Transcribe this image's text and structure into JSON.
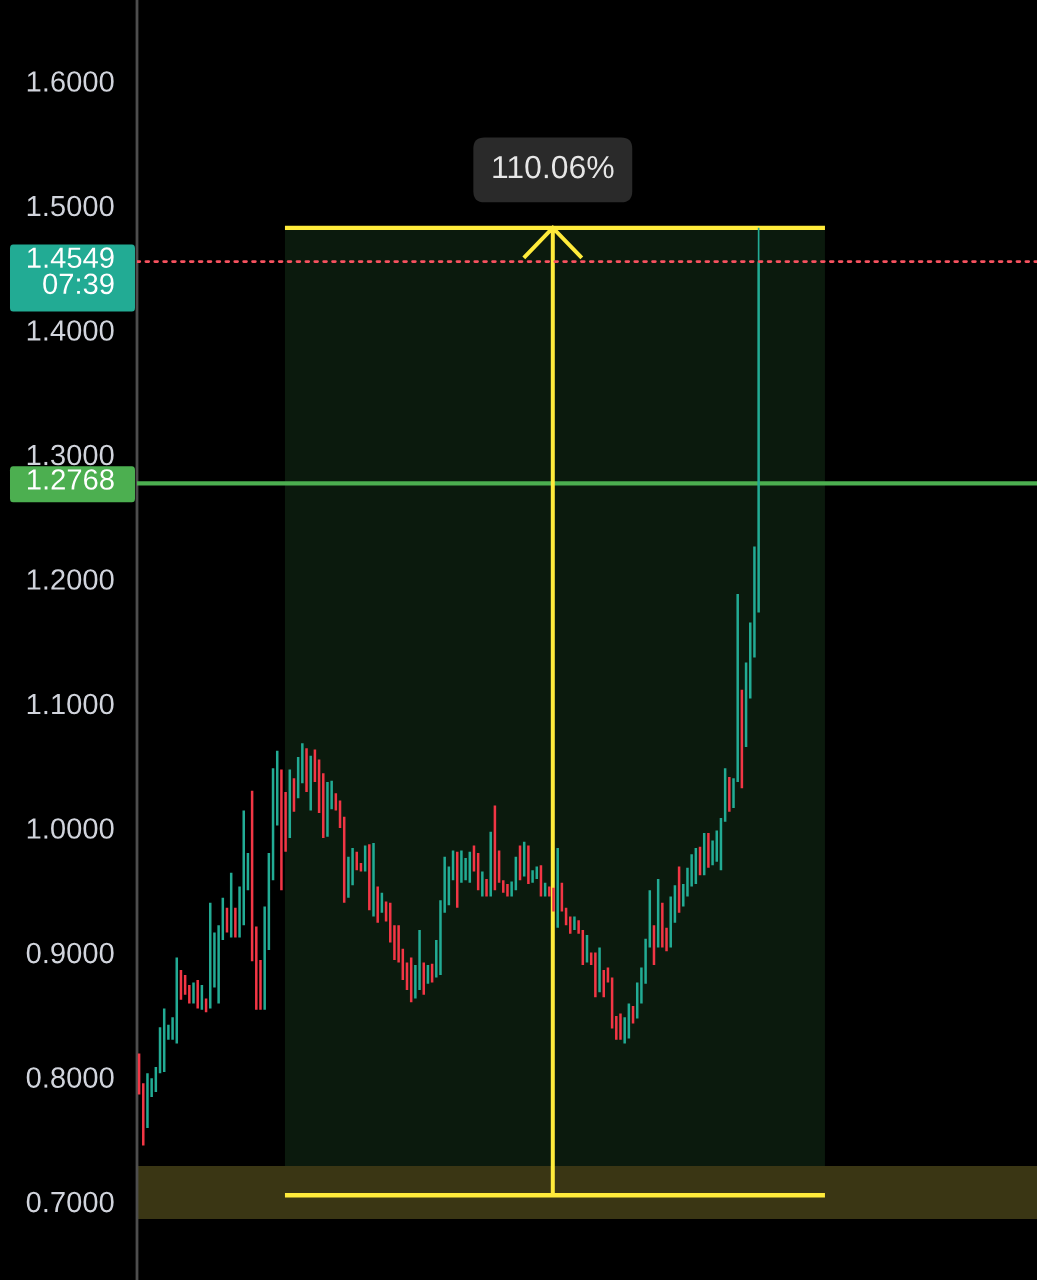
{
  "chart_data": {
    "type": "candlestick",
    "categories": [
      null,
      null,
      null,
      null,
      null,
      null,
      null,
      null,
      null,
      null,
      null,
      null,
      null,
      null,
      null,
      null,
      null,
      null,
      null,
      null,
      null,
      null,
      null,
      null,
      null,
      null,
      null,
      null,
      null,
      null,
      null,
      null,
      null,
      null,
      null,
      null,
      null,
      null,
      null,
      null,
      null,
      null,
      null,
      null,
      null,
      null,
      null,
      null,
      null,
      null,
      null,
      null,
      null,
      null,
      null,
      null,
      null,
      null,
      null,
      null,
      null,
      null,
      null,
      null,
      null,
      null,
      null,
      null,
      null,
      null,
      null,
      null,
      null,
      null,
      null,
      null,
      null,
      null,
      null,
      null,
      null,
      null,
      null,
      null,
      null,
      null,
      null,
      null,
      null,
      null,
      null,
      null,
      null,
      null,
      null,
      null,
      null,
      null,
      null,
      null,
      null,
      null,
      null,
      null,
      null,
      null,
      null,
      null,
      null,
      null,
      null,
      null,
      null,
      null,
      null,
      null,
      null,
      null,
      null,
      null,
      null,
      null,
      null,
      null,
      null,
      null,
      null,
      null,
      null,
      null,
      null,
      null,
      null,
      null,
      null,
      null,
      null,
      null,
      null,
      null,
      null,
      null,
      null,
      null,
      null,
      null,
      null,
      null,
      null,
      null,
      null,
      null,
      null,
      null,
      null,
      null,
      null,
      null,
      null,
      null,
      null,
      null,
      null,
      null,
      null,
      null,
      null,
      null,
      null,
      null,
      null,
      null,
      null,
      null,
      null,
      null,
      null,
      null,
      null,
      null,
      null,
      null,
      null,
      null,
      null,
      null,
      null,
      null,
      null,
      null,
      null,
      null,
      null,
      null,
      null,
      null,
      null,
      null,
      null,
      null,
      null,
      null,
      null,
      null,
      null,
      null,
      null,
      null,
      null,
      null,
      null,
      null,
      null,
      null,
      null
    ],
    "ohlc": [
      [
        0.819,
        0.819,
        0.786,
        0.786
      ],
      [
        0.795,
        0.795,
        0.745,
        0.745
      ],
      [
        0.759,
        0.803,
        0.759,
        0.803
      ],
      [
        0.784,
        0.799,
        0.784,
        0.799
      ],
      [
        0.788,
        0.808,
        0.788,
        0.808
      ],
      [
        0.803,
        0.84,
        0.803,
        0.84
      ],
      [
        0.804,
        0.855,
        0.804,
        0.855
      ],
      [
        0.83,
        0.842,
        0.83,
        0.842
      ],
      [
        0.83,
        0.848,
        0.83,
        0.848
      ],
      [
        0.827,
        0.896,
        0.827,
        0.896
      ],
      [
        0.886,
        0.886,
        0.862,
        0.862
      ],
      [
        0.882,
        0.882,
        0.866,
        0.866
      ],
      [
        0.874,
        0.874,
        0.859,
        0.859
      ],
      [
        0.859,
        0.876,
        0.859,
        0.876
      ],
      [
        0.878,
        0.878,
        0.855,
        0.855
      ],
      [
        0.854,
        0.874,
        0.854,
        0.874
      ],
      [
        0.863,
        0.863,
        0.852,
        0.852
      ],
      [
        0.855,
        0.94,
        0.855,
        0.94
      ],
      [
        0.872,
        0.916,
        0.872,
        0.916
      ],
      [
        0.859,
        0.922,
        0.859,
        0.922
      ],
      [
        0.91,
        0.944,
        0.91,
        0.944
      ],
      [
        0.936,
        0.936,
        0.916,
        0.916
      ],
      [
        0.912,
        0.964,
        0.912,
        0.964
      ],
      [
        0.936,
        0.936,
        0.912,
        0.912
      ],
      [
        0.912,
        0.953,
        0.912,
        0.953
      ],
      [
        0.922,
        1.014,
        0.922,
        1.014
      ],
      [
        0.95,
        0.98,
        0.95,
        0.98
      ],
      [
        1.03,
        1.03,
        0.893,
        0.893
      ],
      [
        0.921,
        0.921,
        0.854,
        0.854
      ],
      [
        0.894,
        0.894,
        0.854,
        0.854
      ],
      [
        0.854,
        0.937,
        0.854,
        0.937
      ],
      [
        0.902,
        0.98,
        0.902,
        0.98
      ],
      [
        0.958,
        1.048,
        0.958,
        1.048
      ],
      [
        1.002,
        1.062,
        1.002,
        1.062
      ],
      [
        1.047,
        1.047,
        0.95,
        0.95
      ],
      [
        1.029,
        1.029,
        0.981,
        0.981
      ],
      [
        0.992,
        1.047,
        0.992,
        1.047
      ],
      [
        1.04,
        1.04,
        1.013,
        1.013
      ],
      [
        1.024,
        1.057,
        1.024,
        1.057
      ],
      [
        1.036,
        1.068,
        1.036,
        1.068
      ],
      [
        1.064,
        1.064,
        1.029,
        1.029
      ],
      [
        1.014,
        1.058,
        1.014,
        1.058
      ],
      [
        1.063,
        1.063,
        1.037,
        1.037
      ],
      [
        1.055,
        1.055,
        1.012,
        1.012
      ],
      [
        1.044,
        1.044,
        0.992,
        0.992
      ],
      [
        0.993,
        1.037,
        0.993,
        1.037
      ],
      [
        1.015,
        1.038,
        1.015,
        1.038
      ],
      [
        1.028,
        1.028,
        1.014,
        1.014
      ],
      [
        1.022,
        1.022,
        1.0,
        1.0
      ],
      [
        1.009,
        1.009,
        0.94,
        0.94
      ],
      [
        0.944,
        0.977,
        0.944,
        0.977
      ],
      [
        0.954,
        0.984,
        0.954,
        0.984
      ],
      [
        0.981,
        0.981,
        0.966,
        0.966
      ],
      [
        0.972,
        0.972,
        0.965,
        0.965
      ],
      [
        0.965,
        0.986,
        0.965,
        0.986
      ],
      [
        0.987,
        0.987,
        0.934,
        0.934
      ],
      [
        0.929,
        0.988,
        0.929,
        0.988
      ],
      [
        0.953,
        0.953,
        0.924,
        0.924
      ],
      [
        0.932,
        0.948,
        0.932,
        0.948
      ],
      [
        0.941,
        0.941,
        0.925,
        0.925
      ],
      [
        0.94,
        0.94,
        0.908,
        0.908
      ],
      [
        0.922,
        0.922,
        0.894,
        0.894
      ],
      [
        0.922,
        0.922,
        0.892,
        0.892
      ],
      [
        0.903,
        0.903,
        0.878,
        0.878
      ],
      [
        0.892,
        0.892,
        0.87,
        0.87
      ],
      [
        0.896,
        0.896,
        0.86,
        0.86
      ],
      [
        0.863,
        0.89,
        0.863,
        0.89
      ],
      [
        0.87,
        0.918,
        0.87,
        0.918
      ],
      [
        0.892,
        0.892,
        0.866,
        0.866
      ],
      [
        0.875,
        0.89,
        0.875,
        0.89
      ],
      [
        0.891,
        0.891,
        0.876,
        0.876
      ],
      [
        0.88,
        0.91,
        0.88,
        0.91
      ],
      [
        0.882,
        0.942,
        0.882,
        0.942
      ],
      [
        0.932,
        0.977,
        0.932,
        0.977
      ],
      [
        0.938,
        0.969,
        0.938,
        0.969
      ],
      [
        0.958,
        0.982,
        0.958,
        0.982
      ],
      [
        0.981,
        0.981,
        0.936,
        0.936
      ],
      [
        0.956,
        0.982,
        0.956,
        0.982
      ],
      [
        0.958,
        0.976,
        0.958,
        0.976
      ],
      [
        0.956,
        0.981,
        0.956,
        0.981
      ],
      [
        0.986,
        0.986,
        0.965,
        0.965
      ],
      [
        0.98,
        0.98,
        0.95,
        0.95
      ],
      [
        0.945,
        0.965,
        0.945,
        0.965
      ],
      [
        0.959,
        0.959,
        0.945,
        0.945
      ],
      [
        0.945,
        0.997,
        0.945,
        0.997
      ],
      [
        1.018,
        1.018,
        0.95,
        0.95
      ],
      [
        0.982,
        0.982,
        0.956,
        0.956
      ],
      [
        0.958,
        0.958,
        0.948,
        0.948
      ],
      [
        0.955,
        0.955,
        0.945,
        0.945
      ],
      [
        0.945,
        0.957,
        0.945,
        0.957
      ],
      [
        0.95,
        0.977,
        0.95,
        0.977
      ],
      [
        0.986,
        0.986,
        0.958,
        0.958
      ],
      [
        0.961,
        0.989,
        0.961,
        0.989
      ],
      [
        0.986,
        0.986,
        0.955,
        0.955
      ],
      [
        0.956,
        0.966,
        0.956,
        0.966
      ],
      [
        0.959,
        0.969,
        0.959,
        0.969
      ],
      [
        0.97,
        0.97,
        0.945,
        0.945
      ],
      [
        0.945,
        0.956,
        0.945,
        0.956
      ],
      [
        0.953,
        0.953,
        0.945,
        0.945
      ],
      [
        0.952,
        0.952,
        0.933,
        0.933
      ],
      [
        0.92,
        0.984,
        0.92,
        0.984
      ],
      [
        0.956,
        0.956,
        0.933,
        0.933
      ],
      [
        0.936,
        0.936,
        0.922,
        0.922
      ],
      [
        0.929,
        0.929,
        0.915,
        0.915
      ],
      [
        0.918,
        0.929,
        0.918,
        0.929
      ],
      [
        0.926,
        0.926,
        0.915,
        0.915
      ],
      [
        0.918,
        0.918,
        0.89,
        0.89
      ],
      [
        0.892,
        0.914,
        0.892,
        0.914
      ],
      [
        0.9,
        0.9,
        0.89,
        0.89
      ],
      [
        0.9,
        0.9,
        0.864,
        0.864
      ],
      [
        0.868,
        0.904,
        0.868,
        0.904
      ],
      [
        0.886,
        0.886,
        0.864,
        0.864
      ],
      [
        0.888,
        0.888,
        0.876,
        0.876
      ],
      [
        0.88,
        0.88,
        0.839,
        0.839
      ],
      [
        0.849,
        0.849,
        0.83,
        0.83
      ],
      [
        0.851,
        0.851,
        0.83,
        0.83
      ],
      [
        0.827,
        0.848,
        0.827,
        0.848
      ],
      [
        0.831,
        0.859,
        0.831,
        0.859
      ],
      [
        0.857,
        0.857,
        0.843,
        0.843
      ],
      [
        0.847,
        0.876,
        0.847,
        0.876
      ],
      [
        0.859,
        0.888,
        0.859,
        0.888
      ],
      [
        0.875,
        0.911,
        0.875,
        0.911
      ],
      [
        0.904,
        0.95,
        0.904,
        0.95
      ],
      [
        0.922,
        0.922,
        0.89,
        0.89
      ],
      [
        0.904,
        0.959,
        0.904,
        0.959
      ],
      [
        0.94,
        0.94,
        0.904,
        0.904
      ],
      [
        0.92,
        0.92,
        0.901,
        0.901
      ],
      [
        0.904,
        0.945,
        0.904,
        0.945
      ],
      [
        0.924,
        0.954,
        0.924,
        0.954
      ],
      [
        0.969,
        0.969,
        0.932,
        0.932
      ],
      [
        0.937,
        0.955,
        0.937,
        0.955
      ],
      [
        0.945,
        0.968,
        0.945,
        0.968
      ],
      [
        0.953,
        0.979,
        0.953,
        0.979
      ],
      [
        0.955,
        0.984,
        0.955,
        0.984
      ],
      [
        0.985,
        0.985,
        0.962,
        0.962
      ],
      [
        0.962,
        0.996,
        0.962,
        0.996
      ],
      [
        0.996,
        0.996,
        0.968,
        0.968
      ],
      [
        0.97,
        0.99,
        0.97,
        0.99
      ],
      [
        0.973,
        0.998,
        0.973,
        0.998
      ],
      [
        0.966,
        1.008,
        0.966,
        1.008
      ],
      [
        1.005,
        1.048,
        1.005,
        1.048
      ],
      [
        1.041,
        1.041,
        1.013,
        1.013
      ],
      [
        1.016,
        1.04,
        1.016,
        1.04
      ],
      [
        1.037,
        1.188,
        1.037,
        1.188
      ],
      [
        1.111,
        1.111,
        1.032,
        1.032
      ],
      [
        1.065,
        1.133,
        1.065,
        1.133
      ],
      [
        1.104,
        1.165,
        1.104,
        1.165
      ],
      [
        1.137,
        1.226,
        1.137,
        1.226
      ],
      [
        1.173,
        1.482,
        1.173,
        1.4549
      ],
      null,
      null,
      null,
      null,
      null,
      null,
      null,
      null,
      null,
      null,
      null,
      null,
      null,
      null,
      null,
      null,
      null,
      null,
      null,
      null,
      null,
      null,
      null,
      null,
      null,
      null,
      null,
      null,
      null,
      null,
      null,
      null,
      null,
      null,
      null,
      null,
      null,
      null,
      null,
      null,
      null,
      null,
      null,
      null,
      null,
      null,
      null,
      null,
      null,
      null,
      null,
      null,
      null,
      null,
      null,
      null,
      null,
      null,
      null,
      null,
      null,
      null,
      null,
      null,
      null,
      null
    ],
    "colors": [
      "#f23645",
      "#f23645",
      "#22ab94",
      "#22ab94",
      "#22ab94",
      "#22ab94",
      "#22ab94",
      "#22ab94",
      "#22ab94",
      "#22ab94",
      "#f23645",
      "#f23645",
      "#f23645",
      "#22ab94",
      "#f23645",
      "#22ab94",
      "#f23645",
      "#22ab94",
      "#22ab94",
      "#22ab94",
      "#22ab94",
      "#f23645",
      "#22ab94",
      "#f23645",
      "#22ab94",
      "#22ab94",
      "#22ab94",
      "#f23645",
      "#f23645",
      "#f23645",
      "#22ab94",
      "#22ab94",
      "#22ab94",
      "#22ab94",
      "#f23645",
      "#f23645",
      "#22ab94",
      "#f23645",
      "#22ab94",
      "#22ab94",
      "#f23645",
      "#22ab94",
      "#f23645",
      "#f23645",
      "#f23645",
      "#22ab94",
      "#22ab94",
      "#f23645",
      "#f23645",
      "#f23645",
      "#22ab94",
      "#22ab94",
      "#f23645",
      "#f23645",
      "#22ab94",
      "#f23645",
      "#22ab94",
      "#f23645",
      "#22ab94",
      "#f23645",
      "#f23645",
      "#f23645",
      "#f23645",
      "#f23645",
      "#f23645",
      "#f23645",
      "#22ab94",
      "#22ab94",
      "#f23645",
      "#22ab94",
      "#f23645",
      "#22ab94",
      "#22ab94",
      "#22ab94",
      "#22ab94",
      "#22ab94",
      "#f23645",
      "#22ab94",
      "#22ab94",
      "#22ab94",
      "#f23645",
      "#f23645",
      "#22ab94",
      "#f23645",
      "#22ab94",
      "#f23645",
      "#f23645",
      "#f23645",
      "#f23645",
      "#22ab94",
      "#22ab94",
      "#f23645",
      "#22ab94",
      "#f23645",
      "#22ab94",
      "#22ab94",
      "#f23645",
      "#22ab94",
      "#f23645",
      "#f23645",
      "#22ab94",
      "#f23645",
      "#f23645",
      "#f23645",
      "#22ab94",
      "#f23645",
      "#f23645",
      "#22ab94",
      "#f23645",
      "#f23645",
      "#22ab94",
      "#f23645",
      "#f23645",
      "#f23645",
      "#f23645",
      "#f23645",
      "#22ab94",
      "#22ab94",
      "#f23645",
      "#22ab94",
      "#22ab94",
      "#22ab94",
      "#22ab94",
      "#f23645",
      "#22ab94",
      "#f23645",
      "#f23645",
      "#22ab94",
      "#22ab94",
      "#f23645",
      "#22ab94",
      "#22ab94",
      "#22ab94",
      "#22ab94",
      "#f23645",
      "#22ab94",
      "#f23645",
      "#22ab94",
      "#22ab94",
      "#22ab94",
      "#22ab94",
      "#f23645",
      "#22ab94",
      "#22ab94",
      "#f23645",
      "#22ab94",
      "#22ab94",
      "#22ab94",
      "#22ab94",
      null,
      null,
      null,
      null,
      null,
      null,
      null,
      null,
      null,
      null,
      null,
      null,
      null,
      null,
      null,
      null,
      null,
      null,
      null,
      null,
      null,
      null,
      null,
      null,
      null,
      null,
      null,
      null,
      null,
      null,
      null,
      null,
      null,
      null,
      null,
      null,
      null,
      null,
      null,
      null,
      null,
      null,
      null,
      null,
      null,
      null,
      null,
      null,
      null,
      null,
      null,
      null,
      null,
      null,
      null,
      null,
      null,
      null,
      null,
      null,
      null,
      null,
      null,
      null,
      null,
      null
    ],
    "ylim": [
      0.637,
      1.665
    ],
    "yticks": [
      {
        "value": 0.7,
        "label": "0.7000"
      },
      {
        "value": 0.8,
        "label": "0.8000"
      },
      {
        "value": 0.9,
        "label": "0.9000"
      },
      {
        "value": 1.0,
        "label": "1.0000"
      },
      {
        "value": 1.1,
        "label": "1.1000"
      },
      {
        "value": 1.2,
        "label": "1.2000"
      },
      {
        "value": 1.3,
        "label": "1.3000"
      },
      {
        "value": 1.4,
        "label": "1.4000"
      },
      {
        "value": 1.5,
        "label": "1.5000"
      },
      {
        "value": 1.6,
        "label": "1.6000"
      }
    ],
    "tick_labels": "y",
    "ref_lines": [
      {
        "axis": "y",
        "value": 1.2768,
        "label": "1.2768",
        "color": "#4caf50",
        "line_style": "solid"
      },
      {
        "axis": "y",
        "value": 1.4549,
        "label": "1.4549\n07:39",
        "color": "#f7525f",
        "line_style": "dotted"
      },
      {
        "axis": "y",
        "value": 1.482,
        "color": "#ffeb3b",
        "line_style": "solid"
      },
      {
        "axis": "y",
        "value": 0.705,
        "color": "#ffeb3b",
        "line_style": "solid"
      }
    ],
    "bands": [
      {
        "axis": "y",
        "from": 0.705,
        "to": 1.482,
        "label": "110.06%",
        "color": "#0b1a0d"
      },
      {
        "axis": "y",
        "from": 0.686,
        "to": 0.7285,
        "color": "#3a3614"
      }
    ]
  }
}
